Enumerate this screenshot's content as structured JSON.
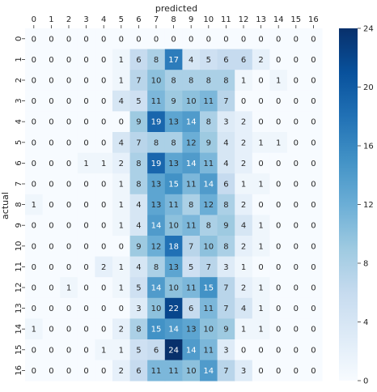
{
  "chart_data": {
    "type": "heatmap",
    "title": "",
    "xlabel": "predicted",
    "ylabel": "actual",
    "x_categories": [
      "0",
      "1",
      "2",
      "3",
      "4",
      "5",
      "6",
      "7",
      "8",
      "9",
      "10",
      "11",
      "12",
      "13",
      "14",
      "15",
      "16"
    ],
    "y_categories": [
      "0",
      "1",
      "2",
      "3",
      "4",
      "5",
      "6",
      "7",
      "8",
      "9",
      "10",
      "11",
      "12",
      "13",
      "14",
      "15",
      "16"
    ],
    "x_axis_position": "top",
    "values": [
      [
        0,
        0,
        0,
        0,
        0,
        0,
        0,
        0,
        0,
        0,
        0,
        0,
        0,
        0,
        0,
        0,
        0
      ],
      [
        0,
        0,
        0,
        0,
        0,
        1,
        6,
        8,
        17,
        4,
        5,
        6,
        6,
        2,
        0,
        0,
        0
      ],
      [
        0,
        0,
        0,
        0,
        0,
        1,
        7,
        10,
        8,
        8,
        8,
        8,
        1,
        0,
        1,
        0,
        0
      ],
      [
        0,
        0,
        0,
        0,
        0,
        4,
        5,
        11,
        9,
        10,
        11,
        7,
        0,
        0,
        0,
        0,
        0
      ],
      [
        0,
        0,
        0,
        0,
        0,
        0,
        9,
        19,
        13,
        14,
        8,
        3,
        2,
        0,
        0,
        0,
        0
      ],
      [
        0,
        0,
        0,
        0,
        0,
        4,
        7,
        8,
        8,
        12,
        9,
        4,
        2,
        1,
        1,
        0,
        0
      ],
      [
        0,
        0,
        0,
        1,
        1,
        2,
        8,
        19,
        13,
        14,
        11,
        4,
        2,
        0,
        0,
        0,
        0
      ],
      [
        0,
        0,
        0,
        0,
        0,
        1,
        8,
        13,
        15,
        11,
        14,
        6,
        1,
        1,
        0,
        0,
        0
      ],
      [
        1,
        0,
        0,
        0,
        0,
        1,
        4,
        13,
        11,
        8,
        12,
        8,
        2,
        0,
        0,
        0,
        0
      ],
      [
        0,
        0,
        0,
        0,
        0,
        1,
        4,
        14,
        10,
        11,
        8,
        9,
        4,
        1,
        0,
        0,
        0
      ],
      [
        0,
        0,
        0,
        0,
        0,
        0,
        9,
        12,
        18,
        7,
        10,
        8,
        2,
        1,
        0,
        0,
        0
      ],
      [
        0,
        0,
        0,
        0,
        2,
        1,
        4,
        8,
        13,
        5,
        7,
        3,
        1,
        0,
        0,
        0,
        0
      ],
      [
        0,
        0,
        1,
        0,
        0,
        1,
        5,
        14,
        10,
        11,
        15,
        7,
        2,
        1,
        0,
        0,
        0
      ],
      [
        0,
        0,
        0,
        0,
        0,
        0,
        3,
        10,
        22,
        6,
        11,
        7,
        4,
        1,
        0,
        0,
        0
      ],
      [
        1,
        0,
        0,
        0,
        0,
        2,
        8,
        15,
        14,
        13,
        10,
        9,
        1,
        1,
        0,
        0,
        0
      ],
      [
        0,
        0,
        0,
        0,
        1,
        1,
        5,
        6,
        24,
        14,
        11,
        3,
        0,
        0,
        0,
        0,
        0
      ],
      [
        0,
        0,
        0,
        0,
        0,
        2,
        6,
        11,
        11,
        10,
        14,
        7,
        3,
        0,
        0,
        0,
        0
      ]
    ],
    "annotations": "cell values shown",
    "colormap": "Blues",
    "vmin": 0,
    "vmax": 24,
    "colorbar_ticks": [
      "0",
      "4",
      "8",
      "12",
      "16",
      "20",
      "24"
    ],
    "grid": false
  }
}
